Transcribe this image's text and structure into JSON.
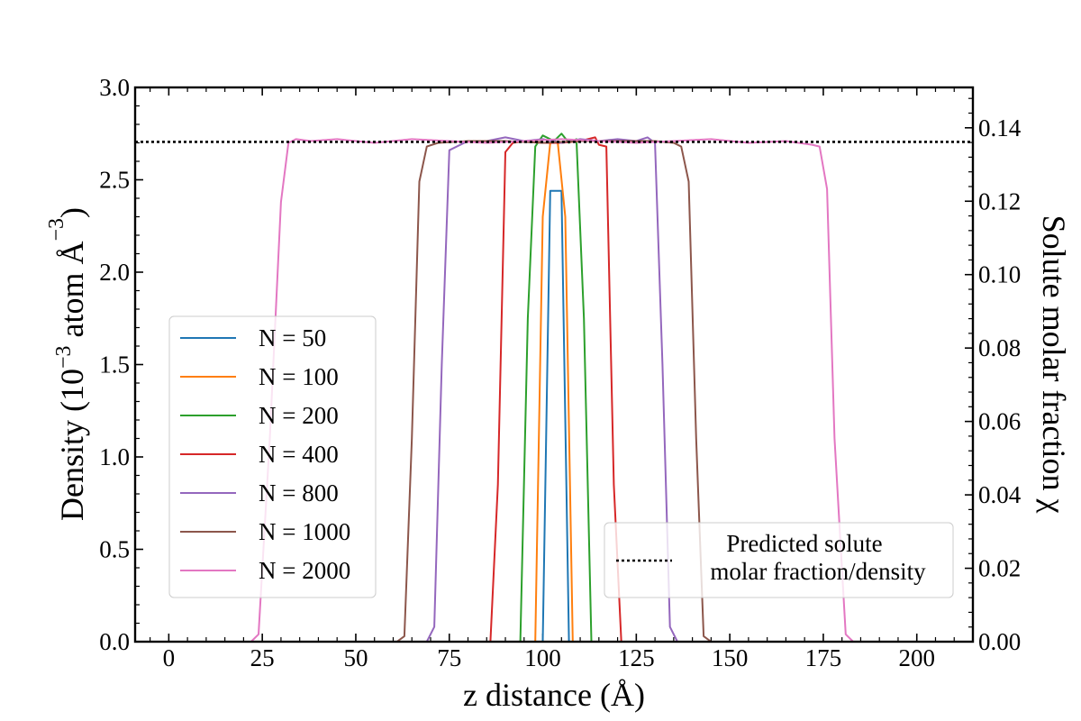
{
  "chart_data": {
    "type": "line",
    "xlabel": "z distance (Å)",
    "ylabel_main": "Density (10",
    "ylabel_exp1": "−3",
    "ylabel_mid": " atom Å",
    "ylabel_exp2": "−3",
    "ylabel_end": ")",
    "y2label": "Solute molar fraction χ",
    "xlim": [
      -9,
      215
    ],
    "ylim": [
      0,
      3.0
    ],
    "y2lim": [
      0,
      0.151
    ],
    "xticks": [
      0,
      25,
      50,
      75,
      100,
      125,
      150,
      175,
      200
    ],
    "xtick_labels": [
      "0",
      "25",
      "50",
      "75",
      "100",
      "125",
      "150",
      "175",
      "200"
    ],
    "yticks": [
      0,
      0.5,
      1.0,
      1.5,
      2.0,
      2.5,
      3.0
    ],
    "ytick_labels": [
      "0.0",
      "0.5",
      "1.0",
      "1.5",
      "2.0",
      "2.5",
      "3.0"
    ],
    "y2ticks": [
      0,
      0.02,
      0.04,
      0.06,
      0.08,
      0.1,
      0.12,
      0.14
    ],
    "y2tick_labels": [
      "0.00",
      "0.02",
      "0.04",
      "0.06",
      "0.08",
      "0.10",
      "0.12",
      "0.14"
    ],
    "predicted_line": {
      "y": 2.705,
      "label_line1": "Predicted solute",
      "label_line2": "molar fraction/density",
      "legend_position": "lower-right"
    },
    "legend_position": "center-left",
    "series": [
      {
        "name": "N = 50",
        "color": "#1f77b4",
        "x": [
          100,
          102,
          102,
          105,
          105,
          107
        ],
        "y": [
          0,
          2.44,
          2.44,
          2.44,
          2.44,
          0
        ]
      },
      {
        "name": "N = 100",
        "color": "#ff7f0e",
        "x": [
          98,
          100,
          102,
          104,
          106,
          108
        ],
        "y": [
          0,
          2.3,
          2.7,
          2.7,
          2.3,
          0
        ]
      },
      {
        "name": "N = 200",
        "color": "#2ca02c",
        "x": [
          94,
          96,
          98,
          100,
          103,
          105,
          107,
          109,
          111,
          113
        ],
        "y": [
          0,
          1.75,
          2.68,
          2.74,
          2.71,
          2.75,
          2.7,
          2.72,
          1.75,
          0
        ]
      },
      {
        "name": "N = 400",
        "color": "#d62728",
        "x": [
          86,
          88,
          90,
          92,
          95,
          100,
          105,
          110,
          114,
          115,
          117,
          119,
          121
        ],
        "y": [
          0,
          0.85,
          2.65,
          2.7,
          2.71,
          2.7,
          2.7,
          2.71,
          2.73,
          2.69,
          2.68,
          0.85,
          0
        ]
      },
      {
        "name": "N = 800",
        "color": "#9467bd",
        "x": [
          69,
          71,
          73,
          75,
          80,
          85,
          90,
          95,
          100,
          105,
          110,
          115,
          120,
          125,
          128,
          130,
          132,
          134,
          136
        ],
        "y": [
          0,
          0.08,
          1.5,
          2.66,
          2.71,
          2.71,
          2.73,
          2.71,
          2.72,
          2.7,
          2.72,
          2.71,
          2.72,
          2.71,
          2.73,
          2.7,
          1.5,
          0.08,
          0
        ]
      },
      {
        "name": "N = 1000",
        "color": "#8c564b",
        "x": [
          61,
          63,
          65,
          67,
          69,
          72,
          80,
          90,
          100,
          110,
          120,
          130,
          135,
          137,
          139,
          141,
          143,
          145
        ],
        "y": [
          0,
          0.03,
          1.1,
          2.49,
          2.68,
          2.7,
          2.71,
          2.71,
          2.7,
          2.71,
          2.71,
          2.71,
          2.7,
          2.68,
          2.49,
          1.1,
          0.03,
          0
        ]
      },
      {
        "name": "N = 2000",
        "color": "#e377c2",
        "x": [
          22,
          24,
          27,
          30,
          32,
          34,
          38,
          45,
          55,
          65,
          75,
          85,
          95,
          105,
          115,
          125,
          135,
          145,
          155,
          165,
          172,
          174,
          176,
          178,
          181,
          183
        ],
        "y": [
          0,
          0.04,
          1.1,
          2.38,
          2.7,
          2.72,
          2.71,
          2.72,
          2.7,
          2.72,
          2.71,
          2.7,
          2.71,
          2.72,
          2.71,
          2.7,
          2.71,
          2.72,
          2.7,
          2.71,
          2.69,
          2.68,
          2.45,
          1.1,
          0.04,
          0
        ]
      }
    ]
  }
}
